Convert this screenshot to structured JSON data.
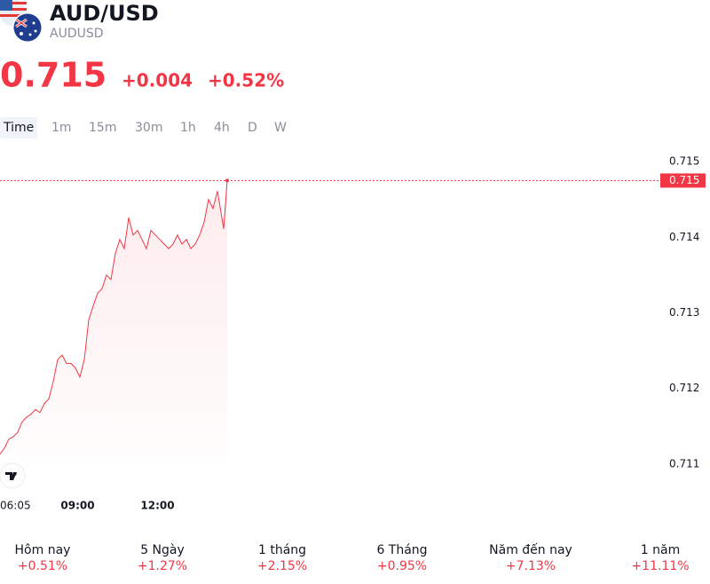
{
  "header": {
    "title": "AUD/USD",
    "symbol": "AUDUSD",
    "price": "0.715",
    "change": "+0.004",
    "change_pct": "+0.52%"
  },
  "tabs": [
    "Time",
    "1m",
    "15m",
    "30m",
    "1h",
    "4h",
    "D",
    "W"
  ],
  "chart_data": {
    "type": "line",
    "x": [
      365,
      375,
      385,
      395,
      405,
      415,
      425,
      435,
      445,
      455,
      465,
      475,
      485,
      495,
      505,
      515,
      525,
      535,
      545,
      555,
      565,
      575,
      585,
      595,
      605,
      615,
      625,
      635,
      645,
      655,
      665,
      675,
      685,
      695,
      705,
      715,
      725,
      735,
      745,
      755,
      765,
      775,
      785,
      795,
      805,
      815,
      825,
      835,
      845,
      855,
      865,
      869,
      877
    ],
    "series": [
      {
        "name": "AUDUSD",
        "color": "#f23645",
        "values": [
          0.71113,
          0.71121,
          0.71133,
          0.71136,
          0.71142,
          0.71156,
          0.71162,
          0.71166,
          0.71172,
          0.71168,
          0.7118,
          0.71186,
          0.71209,
          0.71238,
          0.71244,
          0.71233,
          0.71233,
          0.71227,
          0.71215,
          0.71238,
          0.71291,
          0.71309,
          0.71326,
          0.71332,
          0.7135,
          0.71344,
          0.71379,
          0.71397,
          0.71385,
          0.71426,
          0.71403,
          0.71409,
          0.71397,
          0.71385,
          0.71409,
          0.71403,
          0.71397,
          0.71391,
          0.71385,
          0.71391,
          0.71403,
          0.71391,
          0.71397,
          0.71385,
          0.71391,
          0.71403,
          0.7142,
          0.7145,
          0.71438,
          0.71461,
          0.71426,
          0.71411,
          0.71475
        ]
      }
    ],
    "last_label": "0.715",
    "xlim": [
      365,
      1845
    ],
    "xticks": [
      {
        "value": 365,
        "label": "06:05"
      },
      {
        "value": 540,
        "label": "09:00"
      },
      {
        "value": 720,
        "label": "12:00"
      }
    ],
    "ylim": [
      0.71068,
      0.71526
    ],
    "yticks": [
      0.711,
      0.712,
      0.713,
      0.714,
      0.715
    ],
    "grid": false
  },
  "performance": [
    {
      "label": "Hôm nay",
      "value": "+0.51%"
    },
    {
      "label": "5 Ngày",
      "value": "+1.27%"
    },
    {
      "label": "1 tháng",
      "value": "+2.15%"
    },
    {
      "label": "6 Tháng",
      "value": "+0.95%"
    },
    {
      "label": "Năm đến nay",
      "value": "+7.13%"
    },
    {
      "label": "1 năm",
      "value": "+11.11%"
    }
  ]
}
